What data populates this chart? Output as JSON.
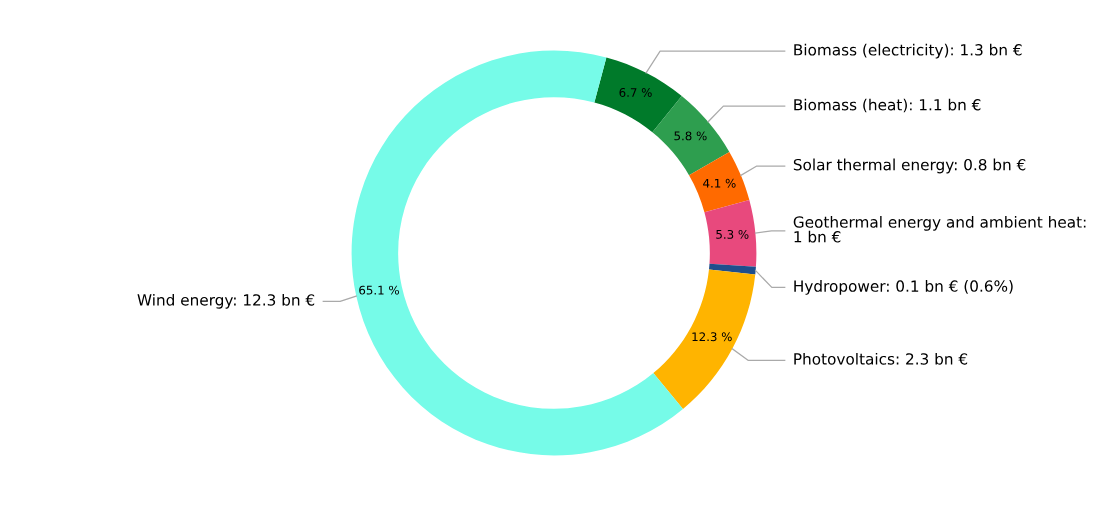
{
  "chart_data": {
    "type": "donut",
    "categories": [
      "Biomass (electricity): 1.3 bn €",
      "Biomass (heat): 1.1 bn €",
      "Solar thermal energy: 0.8 bn €",
      "Geothermal energy and ambient heat:\n1 bn €",
      "Hydropower: 0.1 bn € (0.6%)",
      "Photovoltaics: 2.3 bn €",
      "Wind energy: 12.3 bn €"
    ],
    "values": [
      6.7,
      5.8,
      4.1,
      5.3,
      0.6,
      12.3,
      65.1
    ],
    "value_labels": [
      "6.7 %",
      "5.8 %",
      "4.1 %",
      "5.3 %",
      null,
      "12.3 %",
      "65.1 %"
    ],
    "colors": [
      "#007a2a",
      "#2e9e4f",
      "#ff6a00",
      "#e8497d",
      "#1f4e8c",
      "#ffb400",
      "#76fbe8"
    ]
  }
}
